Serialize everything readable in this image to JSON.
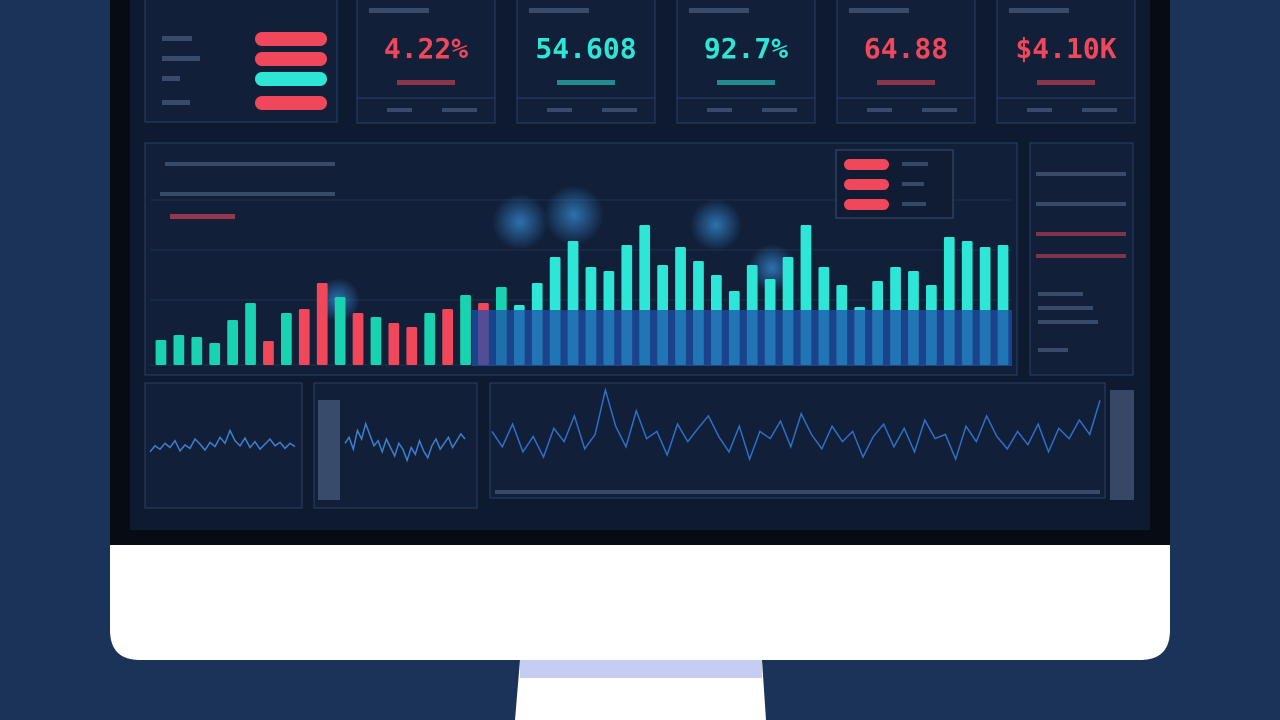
{
  "kpis": [
    {
      "value": "4.22%",
      "color": "#f0475b"
    },
    {
      "value": "54.608",
      "color": "#2ee6d6"
    },
    {
      "value": "92.7%",
      "color": "#2ee6d6"
    },
    {
      "value": "64.88",
      "color": "#f0475b"
    },
    {
      "value": "$4.10K",
      "color": "#f0475b"
    }
  ],
  "chart_data": [
    {
      "type": "bar",
      "ylim": [
        0,
        150
      ],
      "values": [
        25,
        30,
        28,
        22,
        45,
        62,
        24,
        52,
        56,
        82,
        68,
        52,
        48,
        42,
        38,
        52,
        56,
        70,
        62,
        78,
        60,
        82,
        108,
        124,
        98,
        94,
        120,
        140,
        100,
        118,
        104,
        90,
        74,
        100,
        86,
        108,
        140,
        98,
        80,
        58,
        84,
        98,
        94,
        80,
        128,
        124,
        118,
        120
      ],
      "colors": [
        "#19d3b0",
        "#19d3b0",
        "#19d3b0",
        "#19d3b0",
        "#19d3b0",
        "#19d3b0",
        "#f0475b",
        "#19d3b0",
        "#f0475b",
        "#f0475b",
        "#19d3b0",
        "#f0475b",
        "#19d3b0",
        "#f0475b",
        "#f0475b",
        "#19d3b0",
        "#f0475b",
        "#19d3b0",
        "#f0475b",
        "#19d3b0",
        "#2ee6d6",
        "#2ee6d6",
        "#2ee6d6",
        "#2ee6d6",
        "#2ee6d6",
        "#2ee6d6",
        "#2ee6d6",
        "#2ee6d6",
        "#2ee6d6",
        "#2ee6d6",
        "#2ee6d6",
        "#2ee6d6",
        "#2ee6d6",
        "#2ee6d6",
        "#2ee6d6",
        "#2ee6d6",
        "#2ee6d6",
        "#2ee6d6",
        "#2ee6d6",
        "#2ee6d6",
        "#2ee6d6",
        "#2ee6d6",
        "#2ee6d6",
        "#2ee6d6",
        "#2ee6d6",
        "#2ee6d6",
        "#2ee6d6",
        "#2ee6d6"
      ]
    },
    {
      "type": "line",
      "color": "#3d7fd0",
      "ylim": [
        0,
        100
      ],
      "values": [
        45,
        52,
        48,
        55,
        50,
        58,
        46,
        53,
        49,
        60,
        54,
        47,
        56,
        51,
        62,
        55,
        70,
        58,
        52,
        61,
        50,
        57,
        48,
        54,
        60,
        52,
        56,
        49,
        55,
        51
      ]
    },
    {
      "type": "line",
      "color": "#3d7fd0",
      "ylim": [
        0,
        100
      ],
      "values": [
        55,
        62,
        48,
        70,
        60,
        78,
        65,
        52,
        58,
        45,
        60,
        50,
        40,
        55,
        48,
        35,
        50,
        42,
        58,
        46,
        38,
        52,
        60,
        48,
        55,
        62,
        50,
        58,
        66,
        60
      ]
    },
    {
      "type": "line",
      "color": "#2f6fc8",
      "ylim": [
        0,
        100
      ],
      "values": [
        55,
        40,
        62,
        35,
        50,
        30,
        58,
        45,
        70,
        38,
        52,
        95,
        60,
        40,
        75,
        48,
        55,
        32,
        62,
        45,
        58,
        70,
        50,
        35,
        60,
        28,
        55,
        48,
        65,
        40,
        72,
        52,
        38,
        60,
        45,
        55,
        30,
        50,
        62,
        40,
        58,
        35,
        66,
        48,
        52,
        28,
        60,
        45,
        70,
        50,
        38,
        55,
        42,
        62,
        35,
        58,
        48,
        66,
        52,
        85
      ]
    }
  ]
}
